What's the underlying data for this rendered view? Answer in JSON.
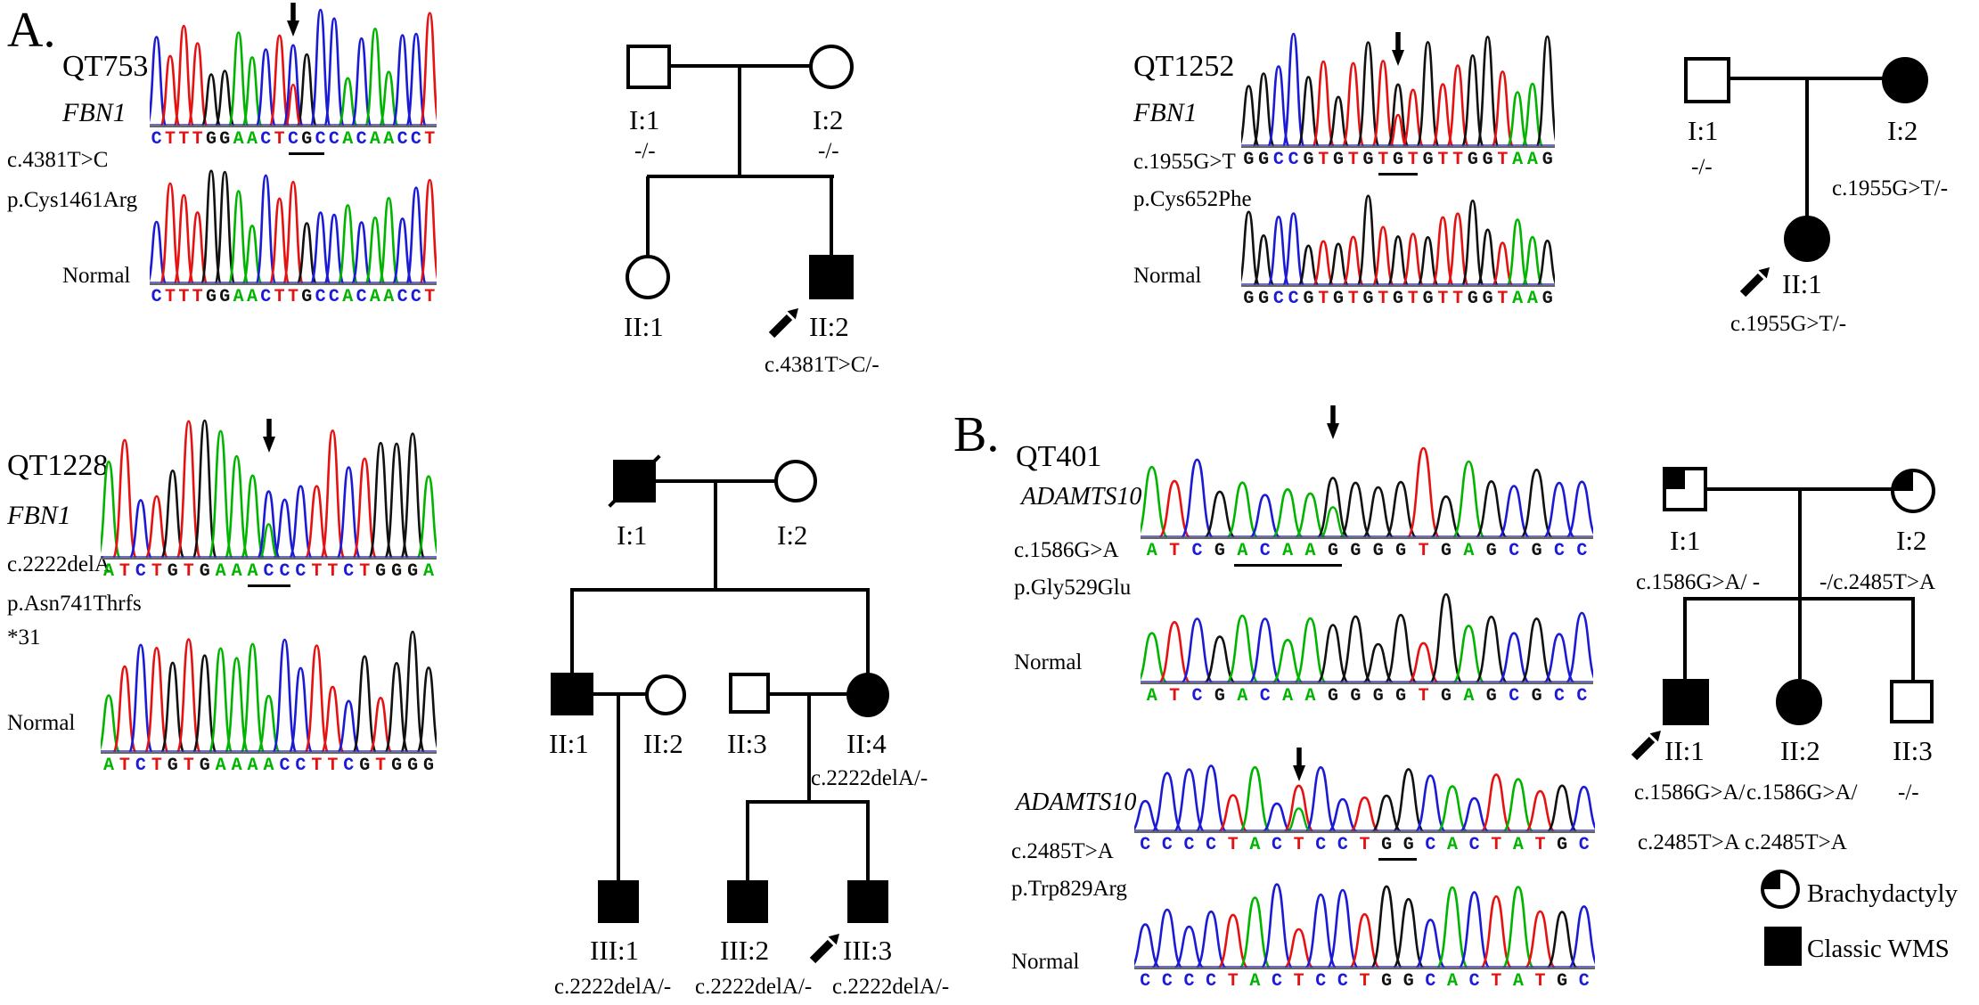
{
  "panels": {
    "a": "A.",
    "b": "B."
  },
  "base_colors": {
    "A": "#00b400",
    "C": "#1b1bd6",
    "G": "#111111",
    "T": "#e61212"
  },
  "legend": {
    "brachydactyly": "Brachydactyly",
    "classic_wms": "Classic WMS"
  },
  "families": {
    "qt753": {
      "name": "QT753",
      "gene": "FBN1",
      "variant": "c.4381T>C",
      "protein": "p.Cys1461Arg",
      "normal_label": "Normal",
      "chromatograms": {
        "mutant": {
          "seq": "CTTTGGAACTCGCCACAACCT",
          "seed": 3,
          "arrow_index": 10,
          "underline": [
            10,
            12
          ],
          "overlay": {
            "index": 10,
            "base": "T"
          }
        },
        "normal": {
          "seq": "CTTTGGAACTTGCCACAACCT",
          "seed": 7
        }
      },
      "pedigree": {
        "I1": "I:1",
        "I1_genotype": "-/-",
        "I2": "I:2",
        "I2_genotype": "-/-",
        "II1": "II:1",
        "II2": "II:2",
        "II2_genotype": "c.4381T>C/-"
      }
    },
    "qt1252": {
      "name": "QT1252",
      "gene": "FBN1",
      "variant": "c.1955G>T",
      "protein": "p.Cys652Phe",
      "normal_label": "Normal",
      "chromatograms": {
        "mutant": {
          "seq": "GGCCGTGTGTGTGTTGGTAAG",
          "seed": 11,
          "arrow_index": 10,
          "underline": [
            9,
            11
          ],
          "overlay": {
            "index": 10,
            "base": "T"
          }
        },
        "normal": {
          "seq": "GGCCGTGTGTGTGTTGGTAAG",
          "seed": 5
        }
      },
      "pedigree": {
        "I1": "I:1",
        "I1_genotype": "-/-",
        "I2": "I:2",
        "I2_genotype": "c.1955G>T/-",
        "II1": "II:1",
        "II1_genotype": "c.1955G>T/-"
      }
    },
    "qt1228": {
      "name": "QT1228",
      "gene": "FBN1",
      "variant": "c.2222delA",
      "protein": "p.Asn741Thrfs",
      "protein2": "*31",
      "normal_label": "Normal",
      "chromatograms": {
        "mutant": {
          "seq": "ATCTGTGAAACCCTTCTGGGA",
          "seed": 13,
          "arrow_index": 10,
          "underline": [
            9,
            11
          ],
          "overlay": {
            "index": 10,
            "base": "A"
          }
        },
        "normal": {
          "seq": "ATCTGTGAAAACCTTCGTGGG",
          "seed": 2
        }
      },
      "pedigree": {
        "I1": "I:1",
        "I2": "I:2",
        "II1": "II:1",
        "II2": "II:2",
        "II3": "II:3",
        "II4": "II:4",
        "II4_genotype": "c.2222delA/-",
        "III1": "III:1",
        "III1_genotype": "c.2222delA/-",
        "III2": "III:2",
        "III2_genotype": "c.2222delA/-",
        "III3": "III:3",
        "III3_genotype": "c.2222delA/-"
      }
    },
    "qt401": {
      "name": "QT401",
      "blocks": [
        {
          "gene": "ADAMTS10",
          "variant": "c.1586G>A",
          "protein": "p.Gly529Glu",
          "normal_label": "Normal",
          "chromatograms": {
            "mutant": {
              "seq": "ATCGACAAGGGGTGAGCGCC",
              "seed": 17,
              "arrow_index": 8,
              "underline": [
                4,
                8
              ],
              "overlay": {
                "index": 8,
                "base": "A"
              }
            },
            "normal": {
              "seq": "ATCGACAAGGGGTGAGCGCC",
              "seed": 9
            }
          }
        },
        {
          "gene": "ADAMTS10",
          "variant": "c.2485T>A",
          "protein": "p.Trp829Arg",
          "normal_label": "Normal",
          "chromatograms": {
            "mutant": {
              "seq": "CCCCTACTCCTGGCACTATGC",
              "seed": 21,
              "arrow_index": 7,
              "underline": [
                11,
                12
              ],
              "overlay": {
                "index": 7,
                "base": "A"
              }
            },
            "normal": {
              "seq": "CCCCTACTCCTGGCACTATGC",
              "seed": 4
            }
          }
        }
      ],
      "pedigree": {
        "I1": "I:1",
        "I1_genotype": "c.1586G>A/ -",
        "I2": "I:2",
        "I2_genotype": "-/c.2485T>A",
        "II1": "II:1",
        "II2": "II:2",
        "II3": "II:3",
        "II1_genotype_line1": "c.1586G>A/",
        "II1_genotype_line2": "c.2485T>A",
        "II2_genotype_line1": "c.1586G>A/",
        "II2_genotype_line2": "c.2485T>A",
        "II3_genotype": "-/-"
      }
    }
  }
}
